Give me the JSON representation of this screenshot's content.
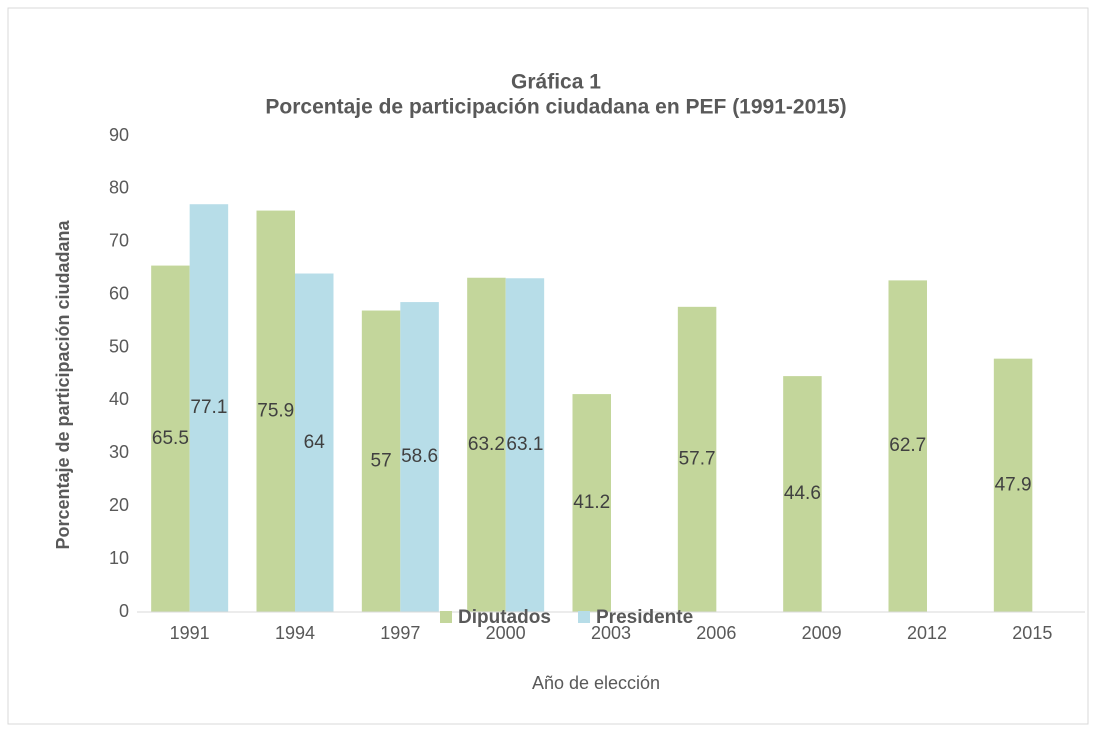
{
  "chart_data": {
    "type": "bar",
    "title": "Gráfica 1",
    "subtitle": "Porcentaje de participación ciudadana en PEF (1991-2015)",
    "x_label": "Año de elección",
    "y_label": "Porcentaje de participación ciudadana",
    "categories": [
      "1991",
      "1994",
      "1997",
      "2000",
      "2003",
      "2006",
      "2009",
      "2012",
      "2015"
    ],
    "series": [
      {
        "name": "Diputados",
        "color": "#c3d69b",
        "values": [
          65.5,
          75.9,
          57,
          63.2,
          41.2,
          57.7,
          44.6,
          62.7,
          47.9
        ]
      },
      {
        "name": "Presidente",
        "color": "#b7dde8",
        "values": [
          77.1,
          64,
          58.6,
          63.1,
          null,
          null,
          null,
          null,
          null
        ]
      }
    ],
    "ylim": [
      0,
      90
    ],
    "yticks": [
      0,
      10,
      20,
      30,
      40,
      50,
      60,
      70,
      80,
      90
    ],
    "grid": false,
    "legend": "bottom"
  }
}
